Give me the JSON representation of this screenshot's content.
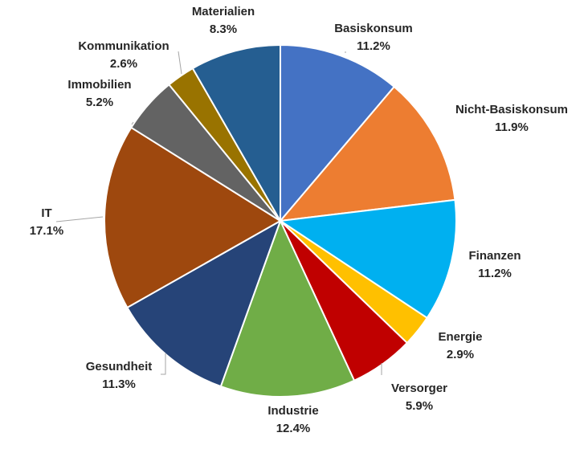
{
  "chart_data": {
    "type": "pie",
    "title": "",
    "start_angle_deg": 0,
    "direction": "clockwise",
    "legend": "none",
    "slices": [
      {
        "label": "Basiskonsum",
        "value": 11.2,
        "value_label": "11.2%",
        "color": "#4472C4"
      },
      {
        "label": "Nicht-Basiskonsum",
        "value": 11.9,
        "value_label": "11.9%",
        "color": "#ED7D31"
      },
      {
        "label": "Finanzen",
        "value": 11.2,
        "value_label": "11.2%",
        "color": "#00B0F0"
      },
      {
        "label": "Energie",
        "value": 2.9,
        "value_label": "2.9%",
        "color": "#FFC000"
      },
      {
        "label": "Versorger",
        "value": 5.9,
        "value_label": "5.9%",
        "color": "#C00000"
      },
      {
        "label": "Industrie",
        "value": 12.4,
        "value_label": "12.4%",
        "color": "#70AD47"
      },
      {
        "label": "Gesundheit",
        "value": 11.3,
        "value_label": "11.3%",
        "color": "#264478"
      },
      {
        "label": "IT",
        "value": 17.1,
        "value_label": "17.1%",
        "color": "#9E480E"
      },
      {
        "label": "Immobilien",
        "value": 5.2,
        "value_label": "5.2%",
        "color": "#636363"
      },
      {
        "label": "Kommunikation",
        "value": 2.6,
        "value_label": "2.6%",
        "color": "#997300"
      },
      {
        "label": "Materialien",
        "value": 8.3,
        "value_label": "8.3%",
        "color": "#255E91"
      }
    ]
  }
}
